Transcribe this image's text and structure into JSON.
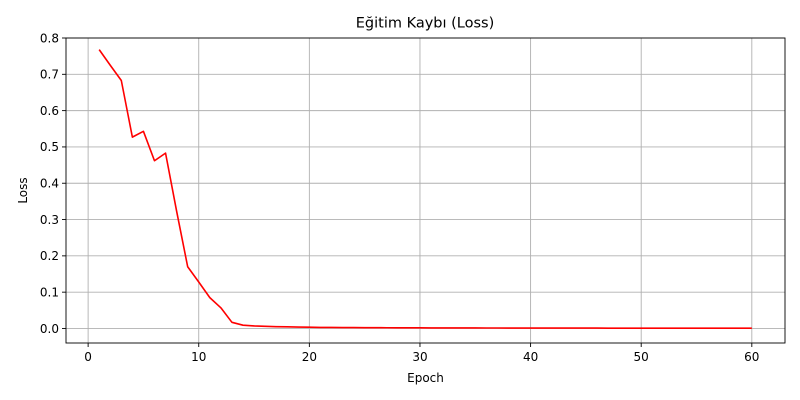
{
  "chart_data": {
    "type": "line",
    "title": "Eğitim Kaybı (Loss)",
    "xlabel": "Epoch",
    "ylabel": "Loss",
    "xlim": [
      -2,
      63
    ],
    "ylim": [
      -0.04,
      0.8
    ],
    "xticks": [
      0,
      10,
      20,
      30,
      40,
      50,
      60
    ],
    "yticks": [
      0.0,
      0.1,
      0.2,
      0.3,
      0.4,
      0.5,
      0.6,
      0.7,
      0.8
    ],
    "ytick_labels": [
      "0.0",
      "0.1",
      "0.2",
      "0.3",
      "0.4",
      "0.5",
      "0.6",
      "0.7",
      "0.8"
    ],
    "grid": true,
    "legend": "none",
    "series": [
      {
        "color": "#ff0000",
        "x": [
          1,
          2,
          3,
          4,
          5,
          6,
          7,
          8,
          9,
          10,
          11,
          12,
          13,
          14,
          15,
          16,
          17,
          18,
          19,
          20,
          21,
          22,
          23,
          24,
          25,
          26,
          27,
          28,
          29,
          30,
          31,
          32,
          33,
          34,
          35,
          36,
          37,
          38,
          39,
          40,
          41,
          42,
          43,
          44,
          45,
          46,
          47,
          48,
          49,
          50,
          51,
          52,
          53,
          54,
          55,
          56,
          57,
          58,
          59,
          60
        ],
        "values": [
          0.768,
          0.725,
          0.683,
          0.527,
          0.543,
          0.462,
          0.483,
          0.323,
          0.17,
          0.128,
          0.085,
          0.057,
          0.017,
          0.009,
          0.007,
          0.006,
          0.005,
          0.0045,
          0.004,
          0.0035,
          0.003,
          0.0028,
          0.0026,
          0.0024,
          0.0022,
          0.0021,
          0.002,
          0.0019,
          0.0018,
          0.0017,
          0.0016,
          0.0015,
          0.0015,
          0.0014,
          0.0014,
          0.0013,
          0.0013,
          0.0012,
          0.0012,
          0.0011,
          0.0011,
          0.0011,
          0.001,
          0.001,
          0.001,
          0.001,
          0.0009,
          0.0009,
          0.0009,
          0.0009,
          0.0008,
          0.0008,
          0.0008,
          0.0008,
          0.0008,
          0.0007,
          0.0007,
          0.0007,
          0.0007,
          0.0007
        ]
      }
    ]
  }
}
